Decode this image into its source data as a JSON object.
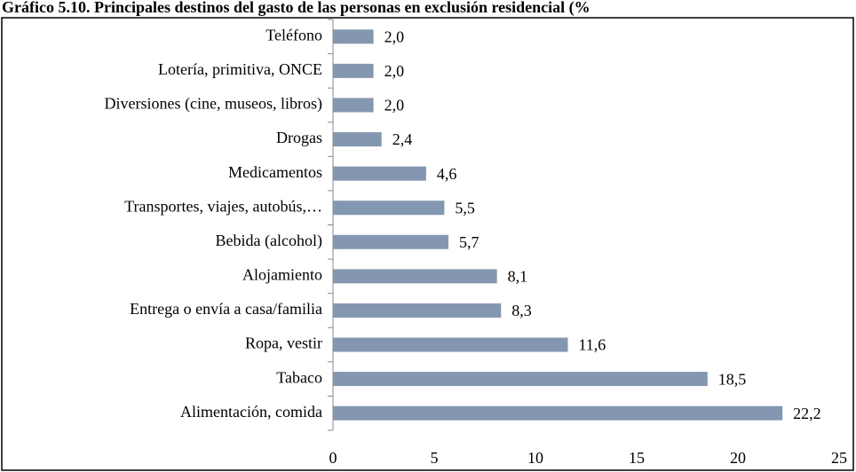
{
  "chart_data": {
    "type": "bar",
    "orientation": "horizontal",
    "title": "Gráfico 5.10. Principales destinos del gasto de las personas en exclusión residencial (%",
    "categories": [
      "Teléfono",
      "Lotería, primitiva, ONCE",
      "Diversiones (cine, museos, libros)",
      "Drogas",
      "Medicamentos",
      "Transportes, viajes, autobús,…",
      "Bebida (alcohol)",
      "Alojamiento",
      "Entrega o envía a casa/familia",
      "Ropa, vestir",
      "Tabaco",
      "Alimentación, comida"
    ],
    "values": [
      2.0,
      2.0,
      2.0,
      2.4,
      4.6,
      5.5,
      5.7,
      8.1,
      8.3,
      11.6,
      18.5,
      22.2
    ],
    "value_labels": [
      "2,0",
      "2,0",
      "2,0",
      "2,4",
      "4,6",
      "5,5",
      "5,7",
      "8,1",
      "8,3",
      "11,6",
      "18,5",
      "22,2"
    ],
    "color": "#8497b0",
    "xlim": [
      0,
      25
    ],
    "xticks": [
      0,
      5,
      10,
      15,
      20,
      25
    ],
    "grid": false
  }
}
